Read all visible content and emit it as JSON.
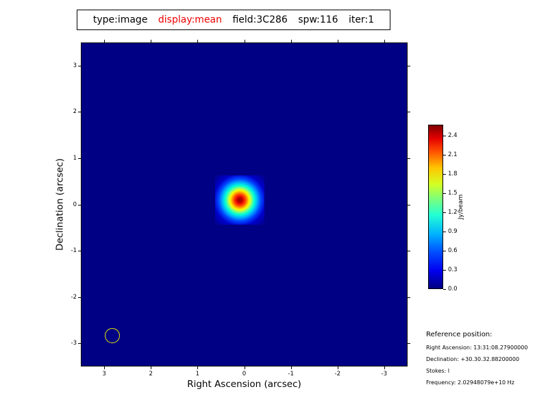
{
  "title": {
    "segments": [
      {
        "text": "type:image",
        "color": "#000000"
      },
      {
        "text": "display:mean",
        "color": "#ee0000"
      },
      {
        "text": "field:3C286",
        "color": "#000000"
      },
      {
        "text": "spw:116",
        "color": "#000000"
      },
      {
        "text": "iter:1",
        "color": "#000000"
      }
    ]
  },
  "reference": {
    "heading": "Reference position:",
    "lines": [
      "Right Ascension: 13:31:08.27900000",
      "Declination: +30.30.32.88200000",
      "Stokes: I",
      "Frequency: 2.02948079e+10 Hz"
    ]
  },
  "colors": {
    "plot_background": "#000085",
    "source_peak": "#7f0000",
    "beam_circle": "#e8e800",
    "title_highlight": "#ee0000"
  },
  "chart_data": {
    "type": "heatmap",
    "title": "type:image display:mean field:3C286 spw:116 iter:1",
    "xlabel": "Right Ascension (arcsec)",
    "ylabel": "Declination (arcsec)",
    "xlim": [
      3.5,
      -3.5
    ],
    "ylim": [
      -3.5,
      3.5
    ],
    "x_tick_values": [
      3,
      2,
      1,
      0,
      -1,
      -2,
      -3
    ],
    "y_tick_values": [
      3,
      2,
      1,
      0,
      -1,
      -2,
      -3
    ],
    "colormap": "jet",
    "grid": false,
    "background_value": 0.0,
    "colorbar": {
      "label": "Jy/beam",
      "ticks": [
        2.4,
        2.1,
        1.8,
        1.5,
        1.2,
        0.9,
        0.6,
        0.3,
        0.0
      ],
      "vmin": 0.0,
      "vmax": 2.57
    },
    "source": {
      "type": "gaussian-point-source",
      "x_arcsec": 0.1,
      "y_arcsec": 0.08,
      "peak_jy_per_beam": 2.55,
      "fwhm_arcsec": 0.35
    },
    "beam_marker": {
      "x_arcsec": 2.8,
      "y_arcsec": -2.8,
      "radius_arcsec": 0.15,
      "color": "#e8e800",
      "filled": false
    }
  }
}
